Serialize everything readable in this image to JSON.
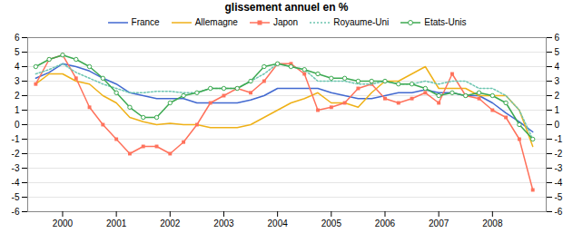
{
  "chart_data": {
    "type": "line",
    "title": "glissement annuel en %",
    "x": [
      1999.5,
      1999.75,
      2000.0,
      2000.25,
      2000.5,
      2000.75,
      2001.0,
      2001.25,
      2001.5,
      2001.75,
      2002.0,
      2002.25,
      2002.5,
      2002.75,
      2003.0,
      2003.25,
      2003.5,
      2003.75,
      2004.0,
      2004.25,
      2004.5,
      2004.75,
      2005.0,
      2005.25,
      2005.5,
      2005.75,
      2006.0,
      2006.25,
      2006.5,
      2006.75,
      2007.0,
      2007.25,
      2007.5,
      2007.75,
      2008.0,
      2008.25,
      2008.5,
      2008.75
    ],
    "series": [
      {
        "name": "France",
        "values": [
          3.2,
          3.6,
          4.2,
          4.0,
          3.7,
          3.2,
          2.8,
          2.2,
          2.0,
          1.8,
          1.8,
          1.8,
          1.5,
          1.5,
          1.5,
          1.5,
          1.7,
          2.0,
          2.5,
          2.5,
          2.5,
          2.5,
          2.2,
          2.0,
          1.8,
          1.8,
          2.0,
          2.2,
          2.2,
          2.4,
          2.2,
          2.2,
          2.0,
          2.0,
          1.5,
          0.8,
          0.2,
          -0.5
        ]
      },
      {
        "name": "Allemagne",
        "values": [
          2.8,
          3.5,
          3.5,
          3.0,
          2.8,
          2.0,
          1.5,
          0.5,
          0.2,
          0.0,
          0.1,
          0.0,
          0.0,
          -0.2,
          -0.2,
          -0.2,
          0.0,
          0.5,
          1.0,
          1.5,
          1.8,
          2.2,
          1.5,
          1.5,
          1.2,
          2.2,
          3.0,
          3.0,
          3.5,
          4.0,
          2.5,
          2.5,
          2.5,
          2.0,
          2.0,
          2.0,
          1.0,
          -1.5
        ]
      },
      {
        "name": "Japon",
        "marker": "square",
        "values": [
          2.8,
          4.5,
          4.8,
          3.2,
          1.2,
          0.0,
          -1.0,
          -2.0,
          -1.5,
          -1.5,
          -2.0,
          -1.2,
          0.0,
          1.5,
          2.0,
          2.5,
          2.2,
          3.0,
          4.2,
          4.2,
          3.5,
          1.0,
          1.2,
          1.5,
          2.5,
          2.8,
          1.8,
          1.5,
          1.8,
          2.2,
          1.5,
          3.5,
          2.0,
          1.8,
          1.0,
          0.5,
          -1.0,
          -4.5
        ]
      },
      {
        "name": "Royaume-Uni",
        "line_style": "dotted",
        "values": [
          3.5,
          3.8,
          4.2,
          3.6,
          3.2,
          2.8,
          2.5,
          2.2,
          2.2,
          2.3,
          2.3,
          2.2,
          2.2,
          2.5,
          2.5,
          2.5,
          3.0,
          3.5,
          4.2,
          4.0,
          3.8,
          3.0,
          3.0,
          3.0,
          2.8,
          2.8,
          3.0,
          2.8,
          2.8,
          3.0,
          2.8,
          3.0,
          3.0,
          2.5,
          2.5,
          2.0,
          1.0,
          -1.0
        ]
      },
      {
        "name": "Etats-Unis",
        "marker": "circle",
        "values": [
          4.0,
          4.5,
          4.8,
          4.5,
          4.0,
          3.2,
          2.2,
          1.2,
          0.5,
          0.5,
          1.5,
          2.0,
          2.2,
          2.5,
          2.5,
          2.5,
          3.0,
          4.0,
          4.2,
          4.0,
          3.8,
          3.5,
          3.2,
          3.2,
          3.0,
          3.0,
          3.0,
          2.8,
          2.8,
          2.5,
          2.0,
          2.2,
          2.0,
          2.2,
          2.0,
          1.5,
          0.0,
          -1.0
        ]
      }
    ],
    "xlim": [
      1999.35,
      2009.0
    ],
    "ylim": [
      -6,
      6
    ],
    "xticks": [
      2000,
      2001,
      2002,
      2003,
      2004,
      2005,
      2006,
      2007,
      2008
    ],
    "yticks": [
      -6,
      -5,
      -4,
      -3,
      -2,
      -1,
      0,
      1,
      2,
      3,
      4,
      5,
      6
    ],
    "y2lim": [
      -6,
      6
    ],
    "y2ticks": [
      -6,
      -5,
      -4,
      -3,
      -2,
      -1,
      0,
      1,
      2,
      3,
      4,
      5,
      6
    ],
    "grid": true,
    "legend": "top"
  }
}
